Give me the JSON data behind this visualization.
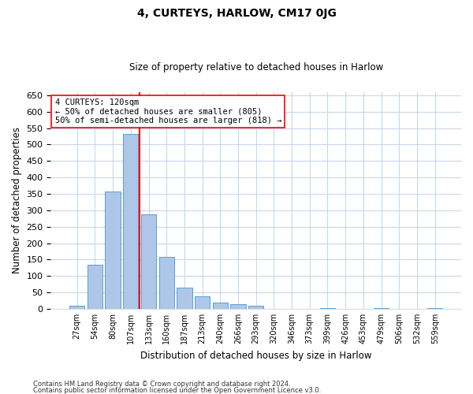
{
  "title": "4, CURTEYS, HARLOW, CM17 0JG",
  "subtitle": "Size of property relative to detached houses in Harlow",
  "xlabel": "Distribution of detached houses by size in Harlow",
  "ylabel": "Number of detached properties",
  "bar_color": "#aec6e8",
  "bar_edge_color": "#5a9fd4",
  "background_color": "#ffffff",
  "plot_bg_color": "#ffffff",
  "grid_color": "#c8d8e8",
  "categories": [
    "27sqm",
    "54sqm",
    "80sqm",
    "107sqm",
    "133sqm",
    "160sqm",
    "187sqm",
    "213sqm",
    "240sqm",
    "266sqm",
    "293sqm",
    "320sqm",
    "346sqm",
    "373sqm",
    "399sqm",
    "426sqm",
    "453sqm",
    "479sqm",
    "506sqm",
    "532sqm",
    "559sqm"
  ],
  "values": [
    10,
    133,
    358,
    533,
    288,
    157,
    65,
    38,
    18,
    14,
    10,
    0,
    0,
    0,
    3,
    0,
    0,
    3,
    0,
    0,
    3
  ],
  "red_line_index": 3.5,
  "annotation_title": "4 CURTEYS: 120sqm",
  "annotation_line1": "← 50% of detached houses are smaller (805)",
  "annotation_line2": "50% of semi-detached houses are larger (818) →",
  "ylim": [
    0,
    660
  ],
  "yticks": [
    0,
    50,
    100,
    150,
    200,
    250,
    300,
    350,
    400,
    450,
    500,
    550,
    600,
    650
  ],
  "footer_line1": "Contains HM Land Registry data © Crown copyright and database right 2024.",
  "footer_line2": "Contains public sector information licensed under the Open Government Licence v3.0."
}
